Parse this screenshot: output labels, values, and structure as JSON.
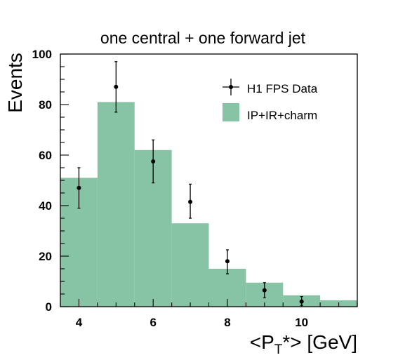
{
  "chart_data": {
    "type": "bar",
    "title": "one central + one forward jet",
    "xlabel": {
      "prefix": "<P",
      "sub": "T",
      "suffix": "*> [GeV]"
    },
    "ylabel": "Events",
    "xlim": [
      3.5,
      11.5
    ],
    "ylim": [
      0,
      100
    ],
    "x_ticks": [
      4,
      6,
      8,
      10
    ],
    "y_ticks": [
      0,
      20,
      40,
      60,
      80,
      100
    ],
    "grid": false,
    "legend_position": "top-right",
    "bar_color": "#86c4a5",
    "histogram": {
      "name": "IP+IR+charm",
      "bins": [
        {
          "x0": 3.5,
          "x1": 4.5,
          "value": 51
        },
        {
          "x0": 4.5,
          "x1": 5.5,
          "value": 81
        },
        {
          "x0": 5.5,
          "x1": 6.5,
          "value": 62
        },
        {
          "x0": 6.5,
          "x1": 7.5,
          "value": 33
        },
        {
          "x0": 7.5,
          "x1": 8.5,
          "value": 15
        },
        {
          "x0": 8.5,
          "x1": 9.5,
          "value": 9.5
        },
        {
          "x0": 9.5,
          "x1": 10.5,
          "value": 4.5
        },
        {
          "x0": 10.5,
          "x1": 11.5,
          "value": 2.5
        }
      ]
    },
    "data_points": {
      "name": "H1 FPS Data",
      "points": [
        {
          "x": 4,
          "y": 47,
          "y_low": 39,
          "y_high": 55
        },
        {
          "x": 5,
          "y": 87,
          "y_low": 77,
          "y_high": 97
        },
        {
          "x": 6,
          "y": 57.5,
          "y_low": 49,
          "y_high": 66
        },
        {
          "x": 7,
          "y": 41.5,
          "y_low": 35,
          "y_high": 48.5
        },
        {
          "x": 8,
          "y": 18,
          "y_low": 13,
          "y_high": 22.5
        },
        {
          "x": 9,
          "y": 6.5,
          "y_low": 3.5,
          "y_high": 9.5
        },
        {
          "x": 10,
          "y": 2,
          "y_low": 0.5,
          "y_high": 4
        }
      ]
    },
    "legend": [
      {
        "label": "H1 FPS Data",
        "kind": "marker"
      },
      {
        "label": "IP+IR+charm",
        "kind": "box"
      }
    ]
  }
}
